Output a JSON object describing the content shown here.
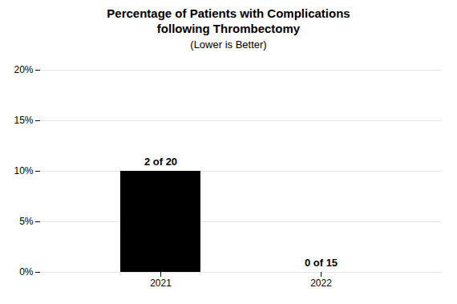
{
  "chart_data": {
    "type": "bar",
    "title": "Percentage of Patients with Complications\nfollowing Thrombectomy",
    "subtitle": "(Lower is Better)",
    "categories": [
      "2021",
      "2022"
    ],
    "values": [
      10,
      0
    ],
    "value_labels": [
      "2 of 20",
      "0 of 15"
    ],
    "data_labels": true,
    "ylim": [
      0,
      20
    ],
    "yticks": [
      {
        "value": 0,
        "label": "0%"
      },
      {
        "value": 5,
        "label": "5%"
      },
      {
        "value": 10,
        "label": "10%"
      },
      {
        "value": 15,
        "label": "15%"
      },
      {
        "value": 20,
        "label": "20%"
      }
    ],
    "grid": true
  }
}
